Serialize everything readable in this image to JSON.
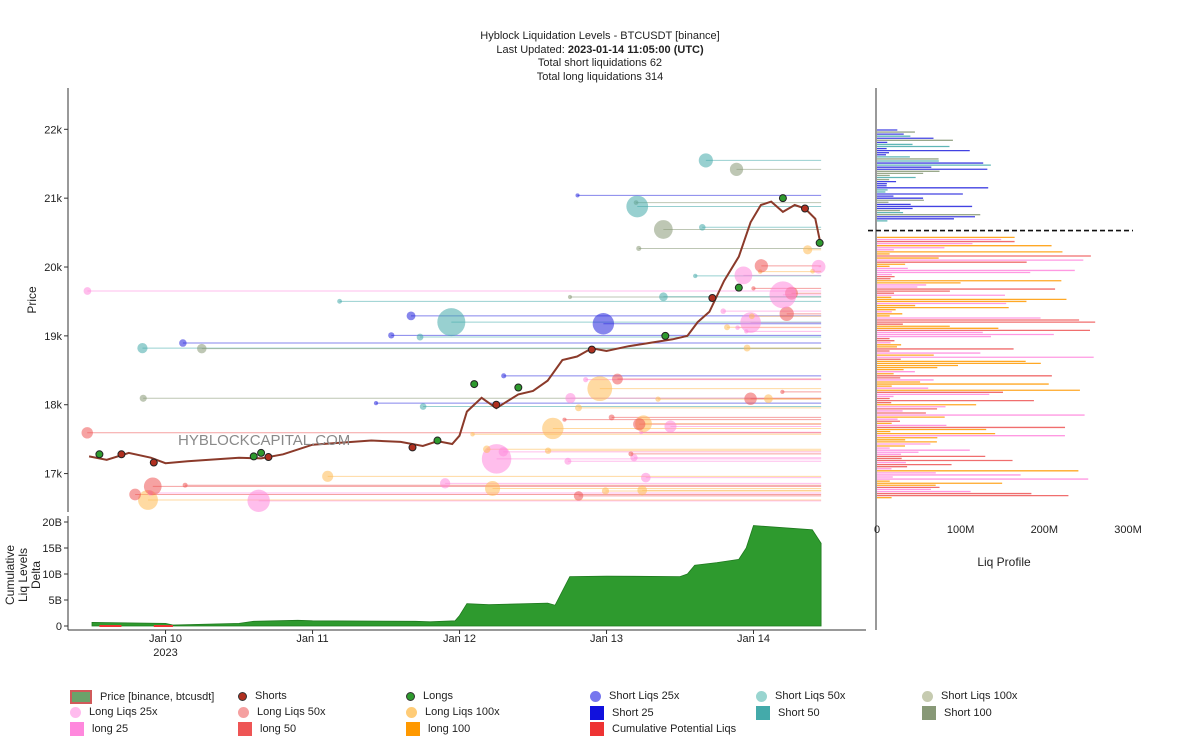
{
  "header": {
    "title": "Hyblock Liquidation Levels - BTCUSDT [binance]",
    "updated_label": "Last Updated:",
    "updated_value": "2023-01-14 11:05:00 (UTC)",
    "short_total": "Total short liquidations 62",
    "long_total": "Total long liquidations 314"
  },
  "watermark": "HYBLOCKCAPITAL.COM",
  "colors": {
    "short25": "#2222dd",
    "short50": "#44aaaa",
    "short100": "#889977",
    "long25": "#ff88dd",
    "long50": "#ee5555",
    "long100": "#ff9900",
    "longliq100": "#ffbb55",
    "cumulative": "#2e9a2e",
    "price": "#8b3a2a"
  },
  "chart_data": [
    {
      "type": "scatter",
      "title": "Hyblock Liquidation Levels - BTCUSDT [binance]",
      "ylabel": "Price",
      "ylim": [
        16500,
        22600
      ],
      "yticks": [
        17000,
        18000,
        19000,
        20000,
        21000,
        22000
      ],
      "ytick_labels": [
        "17k",
        "18k",
        "19k",
        "20k",
        "21k",
        "22k"
      ],
      "xlim": [
        9.35,
        14.67
      ],
      "xticks": [
        10,
        11,
        12,
        13,
        14
      ],
      "xtick_labels": [
        "Jan 10",
        "Jan 11",
        "Jan 12",
        "Jan 13",
        "Jan 14"
      ],
      "xtick_sub": "2023",
      "price_series": {
        "name": "Price [binance, btcusdt]",
        "x": [
          9.48,
          9.6,
          9.75,
          9.9,
          10.0,
          10.15,
          10.3,
          10.5,
          10.65,
          10.8,
          11.0,
          11.2,
          11.4,
          11.6,
          11.75,
          11.85,
          11.95,
          12.0,
          12.05,
          12.15,
          12.25,
          12.4,
          12.5,
          12.6,
          12.7,
          12.8,
          12.9,
          13.0,
          13.15,
          13.3,
          13.45,
          13.55,
          13.62,
          13.7,
          13.8,
          13.9,
          13.98,
          14.05,
          14.12,
          14.2,
          14.28,
          14.35,
          14.42,
          14.46
        ],
        "y": [
          17250,
          17200,
          17300,
          17230,
          17150,
          17180,
          17200,
          17230,
          17220,
          17280,
          17420,
          17450,
          17480,
          17460,
          17400,
          17470,
          17430,
          17550,
          17900,
          18100,
          17950,
          18150,
          18200,
          18350,
          18650,
          18700,
          18820,
          18780,
          18850,
          18900,
          18950,
          19000,
          19200,
          19350,
          19800,
          20150,
          20650,
          20900,
          20950,
          20800,
          20900,
          20850,
          20700,
          20300
        ],
        "longs_markers": [
          [
            9.55,
            17280
          ],
          [
            10.6,
            17250
          ],
          [
            10.65,
            17300
          ],
          [
            11.85,
            17480
          ],
          [
            12.1,
            18300
          ],
          [
            12.4,
            18250
          ],
          [
            13.4,
            19000
          ],
          [
            13.9,
            19700
          ],
          [
            14.2,
            21000
          ],
          [
            14.45,
            20350
          ]
        ],
        "shorts_markers": [
          [
            9.7,
            17280
          ],
          [
            9.92,
            17160
          ],
          [
            10.7,
            17240
          ],
          [
            11.68,
            17380
          ],
          [
            12.25,
            18000
          ],
          [
            12.9,
            18800
          ],
          [
            13.72,
            19550
          ],
          [
            14.35,
            20850
          ]
        ]
      }
    },
    {
      "type": "area",
      "ylabel": "Cumulative Liq Levels Delta",
      "ylim": [
        0,
        20000000000
      ],
      "yticks": [
        0,
        5000000000,
        10000000000,
        15000000000,
        20000000000
      ],
      "ytick_labels": [
        "0",
        "5B",
        "10B",
        "15B",
        "20B"
      ],
      "x": [
        9.5,
        10.0,
        10.05,
        10.5,
        10.6,
        10.9,
        11.0,
        11.7,
        11.8,
        11.97,
        12.0,
        12.05,
        12.2,
        12.6,
        12.65,
        12.75,
        13.0,
        13.5,
        13.55,
        13.6,
        13.75,
        13.9,
        13.95,
        14.0,
        14.4,
        14.46
      ],
      "values": [
        700000000,
        500000000,
        200000000,
        500000000,
        900000000,
        1100000000,
        1000000000,
        900000000,
        800000000,
        1000000000,
        2000000000,
        4300000000,
        4100000000,
        4400000000,
        4000000000,
        9500000000,
        9600000000,
        9500000000,
        10000000000,
        11700000000,
        12200000000,
        12800000000,
        15000000000,
        19300000000,
        18500000000,
        15900000000
      ]
    },
    {
      "type": "bar",
      "xlabel": "Liq Profile",
      "xlim": [
        0,
        300000000
      ],
      "xticks": [
        0,
        100000000,
        200000000,
        300000000
      ],
      "xtick_labels": [
        "0",
        "100M",
        "200M",
        "300M"
      ],
      "current_price": 20530
    }
  ],
  "legend": [
    {
      "label": "Price [binance, btcusdt]",
      "kind": "price"
    },
    {
      "label": "Shorts",
      "kind": "small",
      "color": "#b03020"
    },
    {
      "label": "Longs",
      "kind": "small",
      "color": "#2e9a2e"
    },
    {
      "label": "Short Liqs 25x",
      "kind": "dot",
      "color": "#7777ee"
    },
    {
      "label": "Short Liqs 50x",
      "kind": "dot",
      "color": "#99d5d0"
    },
    {
      "label": "Short Liqs 100x",
      "kind": "dot",
      "color": "#c6cbb0"
    },
    {
      "label": "Long Liqs 25x",
      "kind": "dot",
      "color": "#ffbbee"
    },
    {
      "label": "Long Liqs 50x",
      "kind": "dot",
      "color": "#f5a0a0"
    },
    {
      "label": "Long Liqs 100x",
      "kind": "dot",
      "color": "#ffcc77"
    },
    {
      "label": "Short 25",
      "kind": "sq",
      "color": "#1111dd"
    },
    {
      "label": "Short 50",
      "kind": "sq",
      "color": "#44aaaa"
    },
    {
      "label": "Short 100",
      "kind": "sq",
      "color": "#889977"
    },
    {
      "label": "long 25",
      "kind": "sq",
      "color": "#ff88dd"
    },
    {
      "label": "long 50",
      "kind": "sq",
      "color": "#ee5555"
    },
    {
      "label": "long 100",
      "kind": "sq",
      "color": "#ff9900"
    },
    {
      "label": "Cumulative Potential Liqs",
      "kind": "sq",
      "color": "#ee3333"
    }
  ]
}
